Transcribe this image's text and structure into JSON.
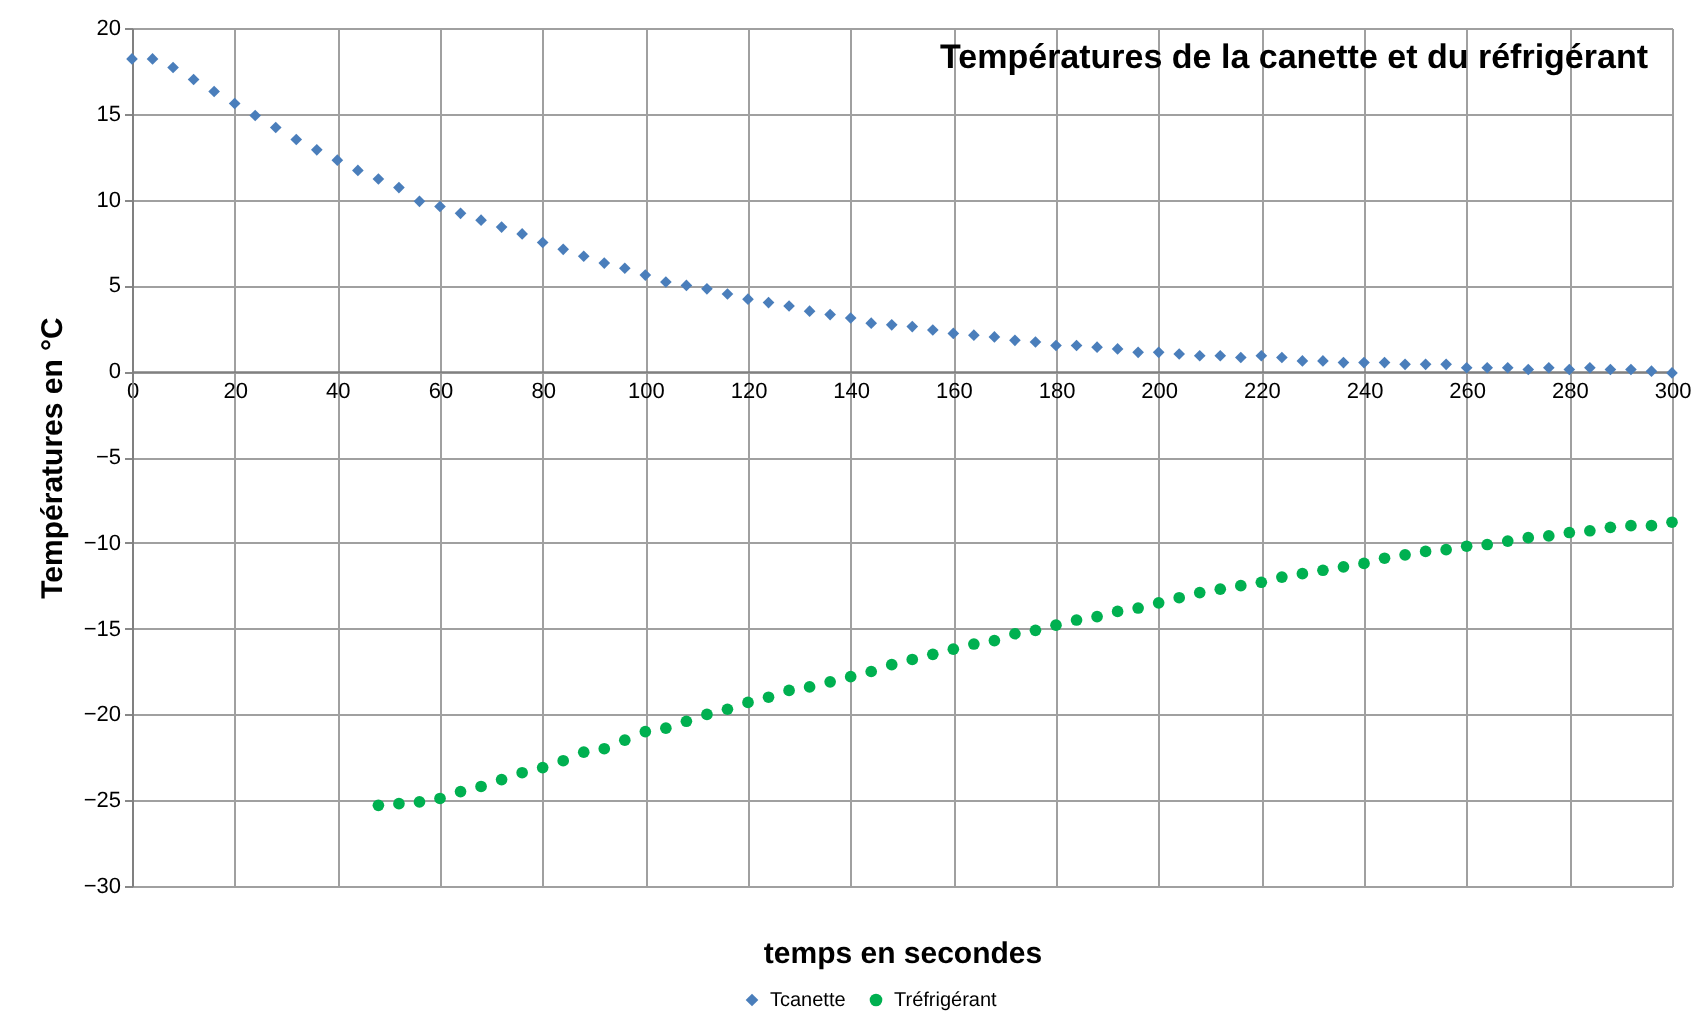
{
  "chart_data": {
    "type": "scatter",
    "title": "Températures de la canette et du réfrigérant",
    "xlabel": "temps en secondes",
    "ylabel": "Températures en °C",
    "xlim": [
      0,
      300
    ],
    "xticks": [
      0,
      20,
      40,
      60,
      80,
      100,
      120,
      140,
      160,
      180,
      200,
      220,
      240,
      260,
      280,
      300
    ],
    "ylim": [
      -30,
      20
    ],
    "yticks": [
      -30,
      -25,
      -20,
      -15,
      -10,
      -5,
      0,
      5,
      10,
      15,
      20
    ],
    "grid": true,
    "legend": "bottom",
    "series": [
      {
        "name": "Tcanette",
        "color": "#4a7ebb",
        "marker": "diamond",
        "x": [
          0,
          4,
          8,
          12,
          16,
          20,
          24,
          28,
          32,
          36,
          40,
          44,
          48,
          52,
          56,
          60,
          64,
          68,
          72,
          76,
          80,
          84,
          88,
          92,
          96,
          100,
          104,
          108,
          112,
          116,
          120,
          124,
          128,
          132,
          136,
          140,
          144,
          148,
          152,
          156,
          160,
          164,
          168,
          172,
          176,
          180,
          184,
          188,
          192,
          196,
          200,
          204,
          208,
          212,
          216,
          220,
          224,
          228,
          232,
          236,
          240,
          244,
          248,
          252,
          256,
          260,
          264,
          268,
          272,
          276,
          280,
          284,
          288,
          292,
          296,
          300
        ],
        "values": [
          18.2,
          18.2,
          17.7,
          17.0,
          16.3,
          15.6,
          14.9,
          14.2,
          13.5,
          12.9,
          12.3,
          11.7,
          11.2,
          10.7,
          9.9,
          9.6,
          9.2,
          8.8,
          8.4,
          8.0,
          7.5,
          7.1,
          6.7,
          6.3,
          6.0,
          5.6,
          5.2,
          5.0,
          4.8,
          4.5,
          4.2,
          4.0,
          3.8,
          3.5,
          3.3,
          3.1,
          2.8,
          2.7,
          2.6,
          2.4,
          2.2,
          2.1,
          2.0,
          1.8,
          1.7,
          1.5,
          1.5,
          1.4,
          1.3,
          1.1,
          1.1,
          1.0,
          0.9,
          0.9,
          0.8,
          0.9,
          0.8,
          0.6,
          0.6,
          0.5,
          0.5,
          0.5,
          0.4,
          0.4,
          0.4,
          0.2,
          0.2,
          0.2,
          0.1,
          0.2,
          0.1,
          0.2,
          0.1,
          0.1,
          0.0,
          -0.1
        ]
      },
      {
        "name": "Tréfrigérant",
        "color": "#00b050",
        "marker": "circle",
        "x": [
          48,
          52,
          56,
          60,
          64,
          68,
          72,
          76,
          80,
          84,
          88,
          92,
          96,
          100,
          104,
          108,
          112,
          116,
          120,
          124,
          128,
          132,
          136,
          140,
          144,
          148,
          152,
          156,
          160,
          164,
          168,
          172,
          176,
          180,
          184,
          188,
          192,
          196,
          200,
          204,
          208,
          212,
          216,
          220,
          224,
          228,
          232,
          236,
          240,
          244,
          248,
          252,
          256,
          260,
          264,
          268,
          272,
          276,
          280,
          284,
          288,
          292,
          296,
          300
        ],
        "values": [
          -25.3,
          -25.2,
          -25.1,
          -24.9,
          -24.5,
          -24.2,
          -23.8,
          -23.4,
          -23.1,
          -22.7,
          -22.2,
          -22.0,
          -21.5,
          -21.0,
          -20.8,
          -20.4,
          -20.0,
          -19.7,
          -19.3,
          -19.0,
          -18.6,
          -18.4,
          -18.1,
          -17.8,
          -17.5,
          -17.1,
          -16.8,
          -16.5,
          -16.2,
          -15.9,
          -15.7,
          -15.3,
          -15.1,
          -14.8,
          -14.5,
          -14.3,
          -14.0,
          -13.8,
          -13.5,
          -13.2,
          -12.9,
          -12.7,
          -12.5,
          -12.3,
          -12.0,
          -11.8,
          -11.6,
          -11.4,
          -11.2,
          -10.9,
          -10.7,
          -10.5,
          -10.4,
          -10.2,
          -10.1,
          -9.9,
          -9.7,
          -9.6,
          -9.4,
          -9.3,
          -9.1,
          -9.0,
          -9.0,
          -8.8
        ]
      }
    ]
  }
}
